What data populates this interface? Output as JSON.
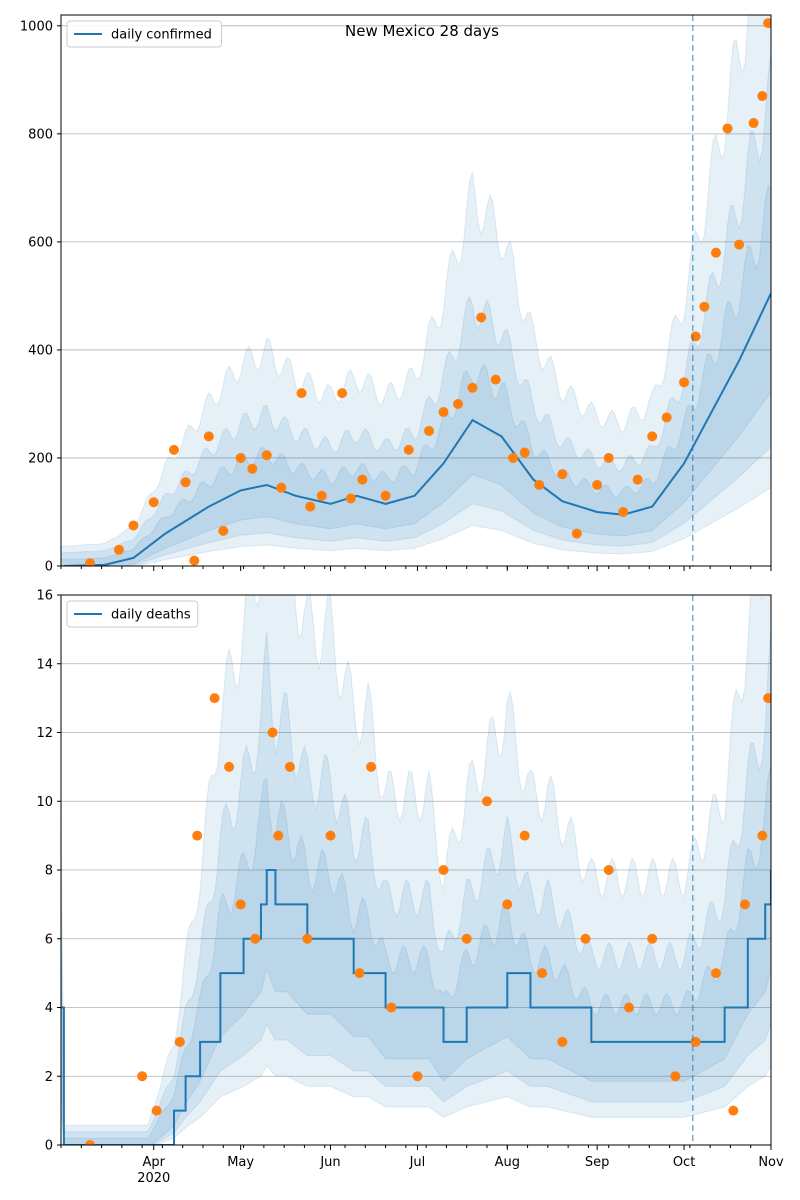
{
  "chart_data": [
    {
      "type": "line",
      "title": "New Mexico 28 days",
      "xlabel": "",
      "ylabel": "",
      "ylim": [
        0,
        1020
      ],
      "yticks": [
        0,
        200,
        400,
        600,
        800,
        1000
      ],
      "grid": "horizontal",
      "legend": {
        "placement": "top-left",
        "entries": [
          "daily confirmed"
        ]
      },
      "vline_date": "2020-10-04",
      "series": [
        {
          "name": "daily confirmed",
          "kind": "line",
          "color": "#1f77b4",
          "x": [
            "2020-03-01",
            "2020-03-15",
            "2020-03-25",
            "2020-04-05",
            "2020-04-20",
            "2020-05-01",
            "2020-05-10",
            "2020-05-20",
            "2020-06-01",
            "2020-06-10",
            "2020-06-20",
            "2020-06-30",
            "2020-07-10",
            "2020-07-20",
            "2020-07-30",
            "2020-08-10",
            "2020-08-20",
            "2020-09-01",
            "2020-09-10",
            "2020-09-20",
            "2020-10-01",
            "2020-10-10",
            "2020-10-20",
            "2020-10-31"
          ],
          "y": [
            0,
            2,
            15,
            60,
            110,
            140,
            150,
            130,
            115,
            130,
            115,
            130,
            190,
            270,
            240,
            160,
            120,
            100,
            95,
            110,
            190,
            280,
            380,
            505
          ]
        },
        {
          "name": "",
          "kind": "scatter",
          "color": "#ff7f0e",
          "x": [
            "2020-03-10",
            "2020-03-20",
            "2020-03-25",
            "2020-04-01",
            "2020-04-08",
            "2020-04-12",
            "2020-04-15",
            "2020-04-20",
            "2020-04-25",
            "2020-05-01",
            "2020-05-05",
            "2020-05-10",
            "2020-05-15",
            "2020-05-22",
            "2020-05-25",
            "2020-05-29",
            "2020-06-05",
            "2020-06-08",
            "2020-06-12",
            "2020-06-20",
            "2020-06-28",
            "2020-07-05",
            "2020-07-10",
            "2020-07-15",
            "2020-07-20",
            "2020-07-23",
            "2020-07-28",
            "2020-08-03",
            "2020-08-07",
            "2020-08-12",
            "2020-08-20",
            "2020-08-25",
            "2020-09-01",
            "2020-09-05",
            "2020-09-10",
            "2020-09-15",
            "2020-09-20",
            "2020-09-25",
            "2020-10-01",
            "2020-10-05",
            "2020-10-08",
            "2020-10-12",
            "2020-10-16",
            "2020-10-20",
            "2020-10-25",
            "2020-10-28",
            "2020-10-30"
          ],
          "y": [
            5,
            30,
            75,
            118,
            215,
            155,
            10,
            240,
            65,
            200,
            180,
            205,
            145,
            320,
            110,
            130,
            320,
            125,
            160,
            130,
            215,
            250,
            285,
            300,
            330,
            460,
            345,
            200,
            210,
            150,
            170,
            60,
            150,
            200,
            100,
            160,
            240,
            275,
            340,
            425,
            480,
            580,
            810,
            595,
            820,
            870,
            1005
          ]
        }
      ]
    },
    {
      "type": "line",
      "title": "",
      "xlabel": "",
      "ylabel": "",
      "ylim": [
        0,
        16
      ],
      "yticks": [
        0,
        2,
        4,
        6,
        8,
        10,
        12,
        14,
        16
      ],
      "grid": "horizontal",
      "legend": {
        "placement": "top-left",
        "entries": [
          "daily deaths"
        ]
      },
      "vline_date": "2020-10-04",
      "series": [
        {
          "name": "daily deaths",
          "kind": "step",
          "color": "#1f77b4",
          "x": [
            "2020-02-29",
            "2020-03-01",
            "2020-03-30",
            "2020-04-08",
            "2020-04-12",
            "2020-04-17",
            "2020-04-24",
            "2020-05-02",
            "2020-05-08",
            "2020-05-10",
            "2020-05-13",
            "2020-05-17",
            "2020-05-24",
            "2020-06-01",
            "2020-06-09",
            "2020-06-14",
            "2020-06-20",
            "2020-07-05",
            "2020-07-10",
            "2020-07-18",
            "2020-08-01",
            "2020-08-09",
            "2020-08-15",
            "2020-08-30",
            "2020-09-15",
            "2020-10-01",
            "2020-10-15",
            "2020-10-23",
            "2020-10-29",
            "2020-10-31"
          ],
          "y": [
            4,
            0,
            0,
            1,
            2,
            3,
            5,
            6,
            7,
            8,
            7,
            7,
            6,
            6,
            5,
            5,
            4,
            4,
            3,
            4,
            5,
            4,
            4,
            3,
            3,
            3,
            4,
            6,
            7,
            8
          ]
        },
        {
          "name": "",
          "kind": "scatter",
          "color": "#ff7f0e",
          "x": [
            "2020-03-10",
            "2020-03-28",
            "2020-04-02",
            "2020-04-10",
            "2020-04-16",
            "2020-04-22",
            "2020-04-27",
            "2020-05-01",
            "2020-05-06",
            "2020-05-12",
            "2020-05-14",
            "2020-05-18",
            "2020-05-24",
            "2020-06-01",
            "2020-06-11",
            "2020-06-15",
            "2020-06-22",
            "2020-07-01",
            "2020-07-10",
            "2020-07-18",
            "2020-07-25",
            "2020-08-01",
            "2020-08-07",
            "2020-08-13",
            "2020-08-20",
            "2020-08-28",
            "2020-09-05",
            "2020-09-12",
            "2020-09-20",
            "2020-09-28",
            "2020-10-05",
            "2020-10-12",
            "2020-10-18",
            "2020-10-22",
            "2020-10-28",
            "2020-10-30"
          ],
          "y": [
            0,
            2,
            1,
            3,
            9,
            13,
            11,
            7,
            6,
            12,
            9,
            11,
            6,
            9,
            5,
            11,
            4,
            2,
            8,
            6,
            10,
            7,
            9,
            5,
            3,
            6,
            8,
            4,
            6,
            2,
            3,
            5,
            1,
            7,
            9,
            13
          ]
        }
      ]
    }
  ],
  "x_axis": {
    "domain": [
      "2020-02-29",
      "2020-10-31"
    ],
    "tick_labels": [
      {
        "date": "2020-04-01",
        "label": "Apr",
        "sub": "2020"
      },
      {
        "date": "2020-05-01",
        "label": "May"
      },
      {
        "date": "2020-06-01",
        "label": "Jun"
      },
      {
        "date": "2020-07-01",
        "label": "Jul"
      },
      {
        "date": "2020-08-01",
        "label": "Aug"
      },
      {
        "date": "2020-09-01",
        "label": "Sep"
      },
      {
        "date": "2020-10-01",
        "label": "Oct"
      },
      {
        "date": "2020-11-01",
        "label": "Nov"
      }
    ]
  },
  "colors": {
    "line": "#1f77b4",
    "points": "#ff7f0e",
    "band": "#1f77b4",
    "vline": "#1f77b4",
    "grid": "#b0b0b0"
  }
}
